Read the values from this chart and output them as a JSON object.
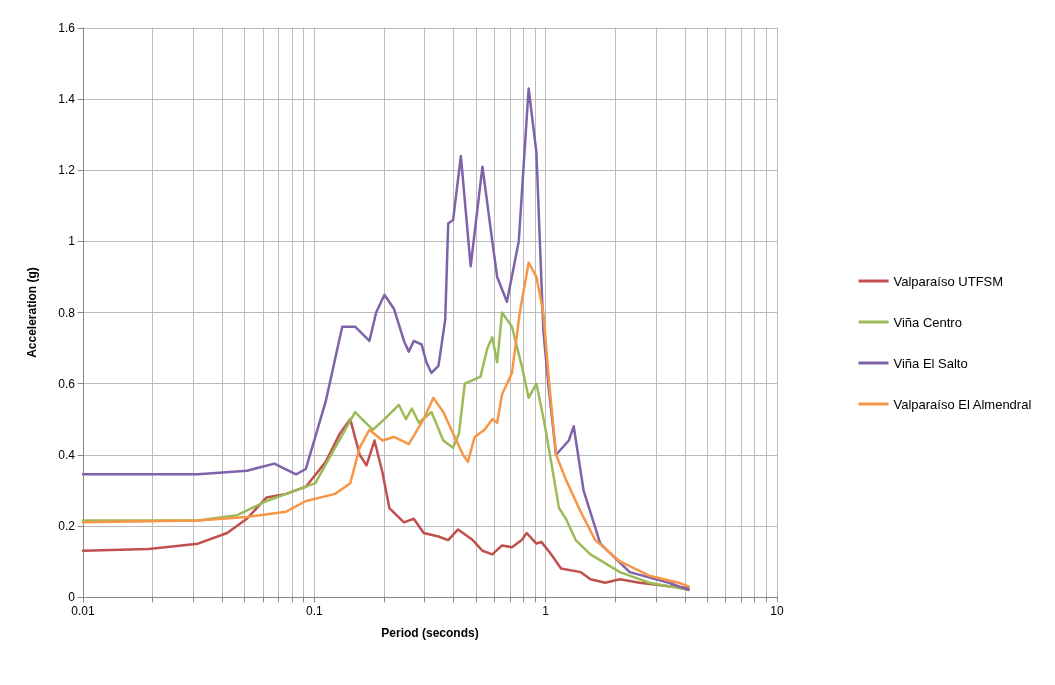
{
  "chart_data": {
    "type": "line",
    "xlabel": "Period (seconds)",
    "ylabel": "Acceleration (g)",
    "log": "x",
    "xlim": [
      0.01,
      10
    ],
    "xticks": [
      0.01,
      {
        "value": 0.02,
        "label": null
      },
      {
        "value": 0.03,
        "label": null
      },
      {
        "value": 0.04,
        "label": null
      },
      {
        "value": 0.05,
        "label": null
      },
      {
        "value": 0.06,
        "label": null
      },
      {
        "value": 0.07,
        "label": null
      },
      {
        "value": 0.08,
        "label": null
      },
      {
        "value": 0.09,
        "label": null
      },
      0.1,
      {
        "value": 0.2,
        "label": null
      },
      {
        "value": 0.3,
        "label": null
      },
      {
        "value": 0.4,
        "label": null
      },
      {
        "value": 0.5,
        "label": null
      },
      {
        "value": 0.6,
        "label": null
      },
      {
        "value": 0.7,
        "label": null
      },
      {
        "value": 0.8,
        "label": null
      },
      {
        "value": 0.9,
        "label": null
      },
      1,
      {
        "value": 2,
        "label": null
      },
      {
        "value": 3,
        "label": null
      },
      {
        "value": 4,
        "label": null
      },
      {
        "value": 5,
        "label": null
      },
      {
        "value": 6,
        "label": null
      },
      {
        "value": 7,
        "label": null
      },
      {
        "value": 8,
        "label": null
      },
      {
        "value": 9,
        "label": null
      },
      10
    ],
    "ylim": [
      0,
      1.6
    ],
    "yticks": [
      0,
      0.2,
      0.4,
      0.6,
      0.8,
      1,
      1.2,
      1.4,
      1.6
    ],
    "grid": true,
    "legend": "right",
    "marker": "none",
    "line_style": "solid",
    "series": [
      {
        "name": "Valparaíso UTFSM",
        "color": "#c0504d",
        "x": [
          0.01,
          0.0192,
          0.0314,
          0.042,
          0.0511,
          0.0622,
          0.0755,
          0.0919,
          0.112,
          0.129,
          0.143,
          0.157,
          0.168,
          0.182,
          0.197,
          0.211,
          0.244,
          0.269,
          0.297,
          0.344,
          0.379,
          0.418,
          0.484,
          0.533,
          0.588,
          0.648,
          0.715,
          0.788,
          0.828,
          0.912,
          0.958,
          1.056,
          1.165,
          1.416,
          1.561,
          1.808,
          2.094,
          2.544,
          3.412,
          4.146
        ],
        "values": [
          0.13,
          0.135,
          0.15,
          0.18,
          0.22,
          0.28,
          0.29,
          0.31,
          0.38,
          0.46,
          0.5,
          0.4,
          0.37,
          0.44,
          0.35,
          0.25,
          0.21,
          0.22,
          0.18,
          0.17,
          0.16,
          0.19,
          0.16,
          0.13,
          0.12,
          0.145,
          0.14,
          0.16,
          0.18,
          0.15,
          0.155,
          0.12,
          0.08,
          0.07,
          0.05,
          0.04,
          0.05,
          0.04,
          0.03,
          0.025
        ]
      },
      {
        "name": "Viña Centro",
        "color": "#9bbb59",
        "x": [
          0.01,
          0.0314,
          0.0464,
          0.0622,
          0.0833,
          0.101,
          0.123,
          0.15,
          0.179,
          0.201,
          0.232,
          0.249,
          0.264,
          0.283,
          0.321,
          0.361,
          0.398,
          0.422,
          0.447,
          0.484,
          0.523,
          0.56,
          0.588,
          0.617,
          0.648,
          0.715,
          0.788,
          0.844,
          0.912,
          0.987,
          1.056,
          1.142,
          1.223,
          1.349,
          1.561,
          2.094,
          2.805,
          4.146
        ],
        "values": [
          0.215,
          0.215,
          0.23,
          0.27,
          0.3,
          0.32,
          0.42,
          0.52,
          0.47,
          0.5,
          0.54,
          0.5,
          0.53,
          0.49,
          0.52,
          0.44,
          0.42,
          0.46,
          0.6,
          0.61,
          0.62,
          0.7,
          0.73,
          0.66,
          0.8,
          0.76,
          0.65,
          0.56,
          0.6,
          0.49,
          0.38,
          0.25,
          0.22,
          0.16,
          0.12,
          0.07,
          0.04,
          0.02
        ]
      },
      {
        "name": "Viña El Salto",
        "color": "#7f63a8",
        "x": [
          0.01,
          0.0314,
          0.0511,
          0.0672,
          0.0833,
          0.0919,
          0.112,
          0.132,
          0.15,
          0.173,
          0.185,
          0.201,
          0.221,
          0.244,
          0.256,
          0.269,
          0.291,
          0.305,
          0.321,
          0.344,
          0.368,
          0.379,
          0.398,
          0.43,
          0.474,
          0.533,
          0.588,
          0.617,
          0.68,
          0.765,
          0.844,
          0.912,
          0.977,
          1.026,
          1.109,
          1.259,
          1.322,
          1.458,
          1.722,
          2.308,
          3.412,
          4.146
        ],
        "values": [
          0.345,
          0.345,
          0.355,
          0.375,
          0.345,
          0.36,
          0.55,
          0.76,
          0.76,
          0.72,
          0.8,
          0.85,
          0.81,
          0.72,
          0.69,
          0.72,
          0.71,
          0.66,
          0.63,
          0.65,
          0.78,
          1.05,
          1.06,
          1.24,
          0.93,
          1.21,
          1,
          0.9,
          0.83,
          1,
          1.43,
          1.25,
          0.75,
          0.6,
          0.4,
          0.44,
          0.48,
          0.3,
          0.15,
          0.07,
          0.04,
          0.02
        ]
      },
      {
        "name": "Valparaíso El Almendral",
        "color": "#f79646",
        "x": [
          0.01,
          0.0314,
          0.0511,
          0.0755,
          0.0919,
          0.123,
          0.143,
          0.157,
          0.173,
          0.197,
          0.221,
          0.256,
          0.297,
          0.327,
          0.361,
          0.398,
          0.439,
          0.461,
          0.493,
          0.544,
          0.588,
          0.617,
          0.648,
          0.715,
          0.773,
          0.844,
          0.912,
          0.977,
          1.036,
          1.109,
          1.223,
          1.416,
          1.639,
          2.094,
          2.805,
          3.761,
          4.146
        ],
        "values": [
          0.21,
          0.215,
          0.225,
          0.24,
          0.27,
          0.29,
          0.32,
          0.42,
          0.47,
          0.44,
          0.45,
          0.43,
          0.5,
          0.56,
          0.52,
          0.46,
          0.4,
          0.38,
          0.45,
          0.47,
          0.5,
          0.49,
          0.57,
          0.63,
          0.8,
          0.94,
          0.9,
          0.8,
          0.6,
          0.4,
          0.33,
          0.24,
          0.16,
          0.1,
          0.06,
          0.04,
          0.03
        ]
      }
    ]
  }
}
